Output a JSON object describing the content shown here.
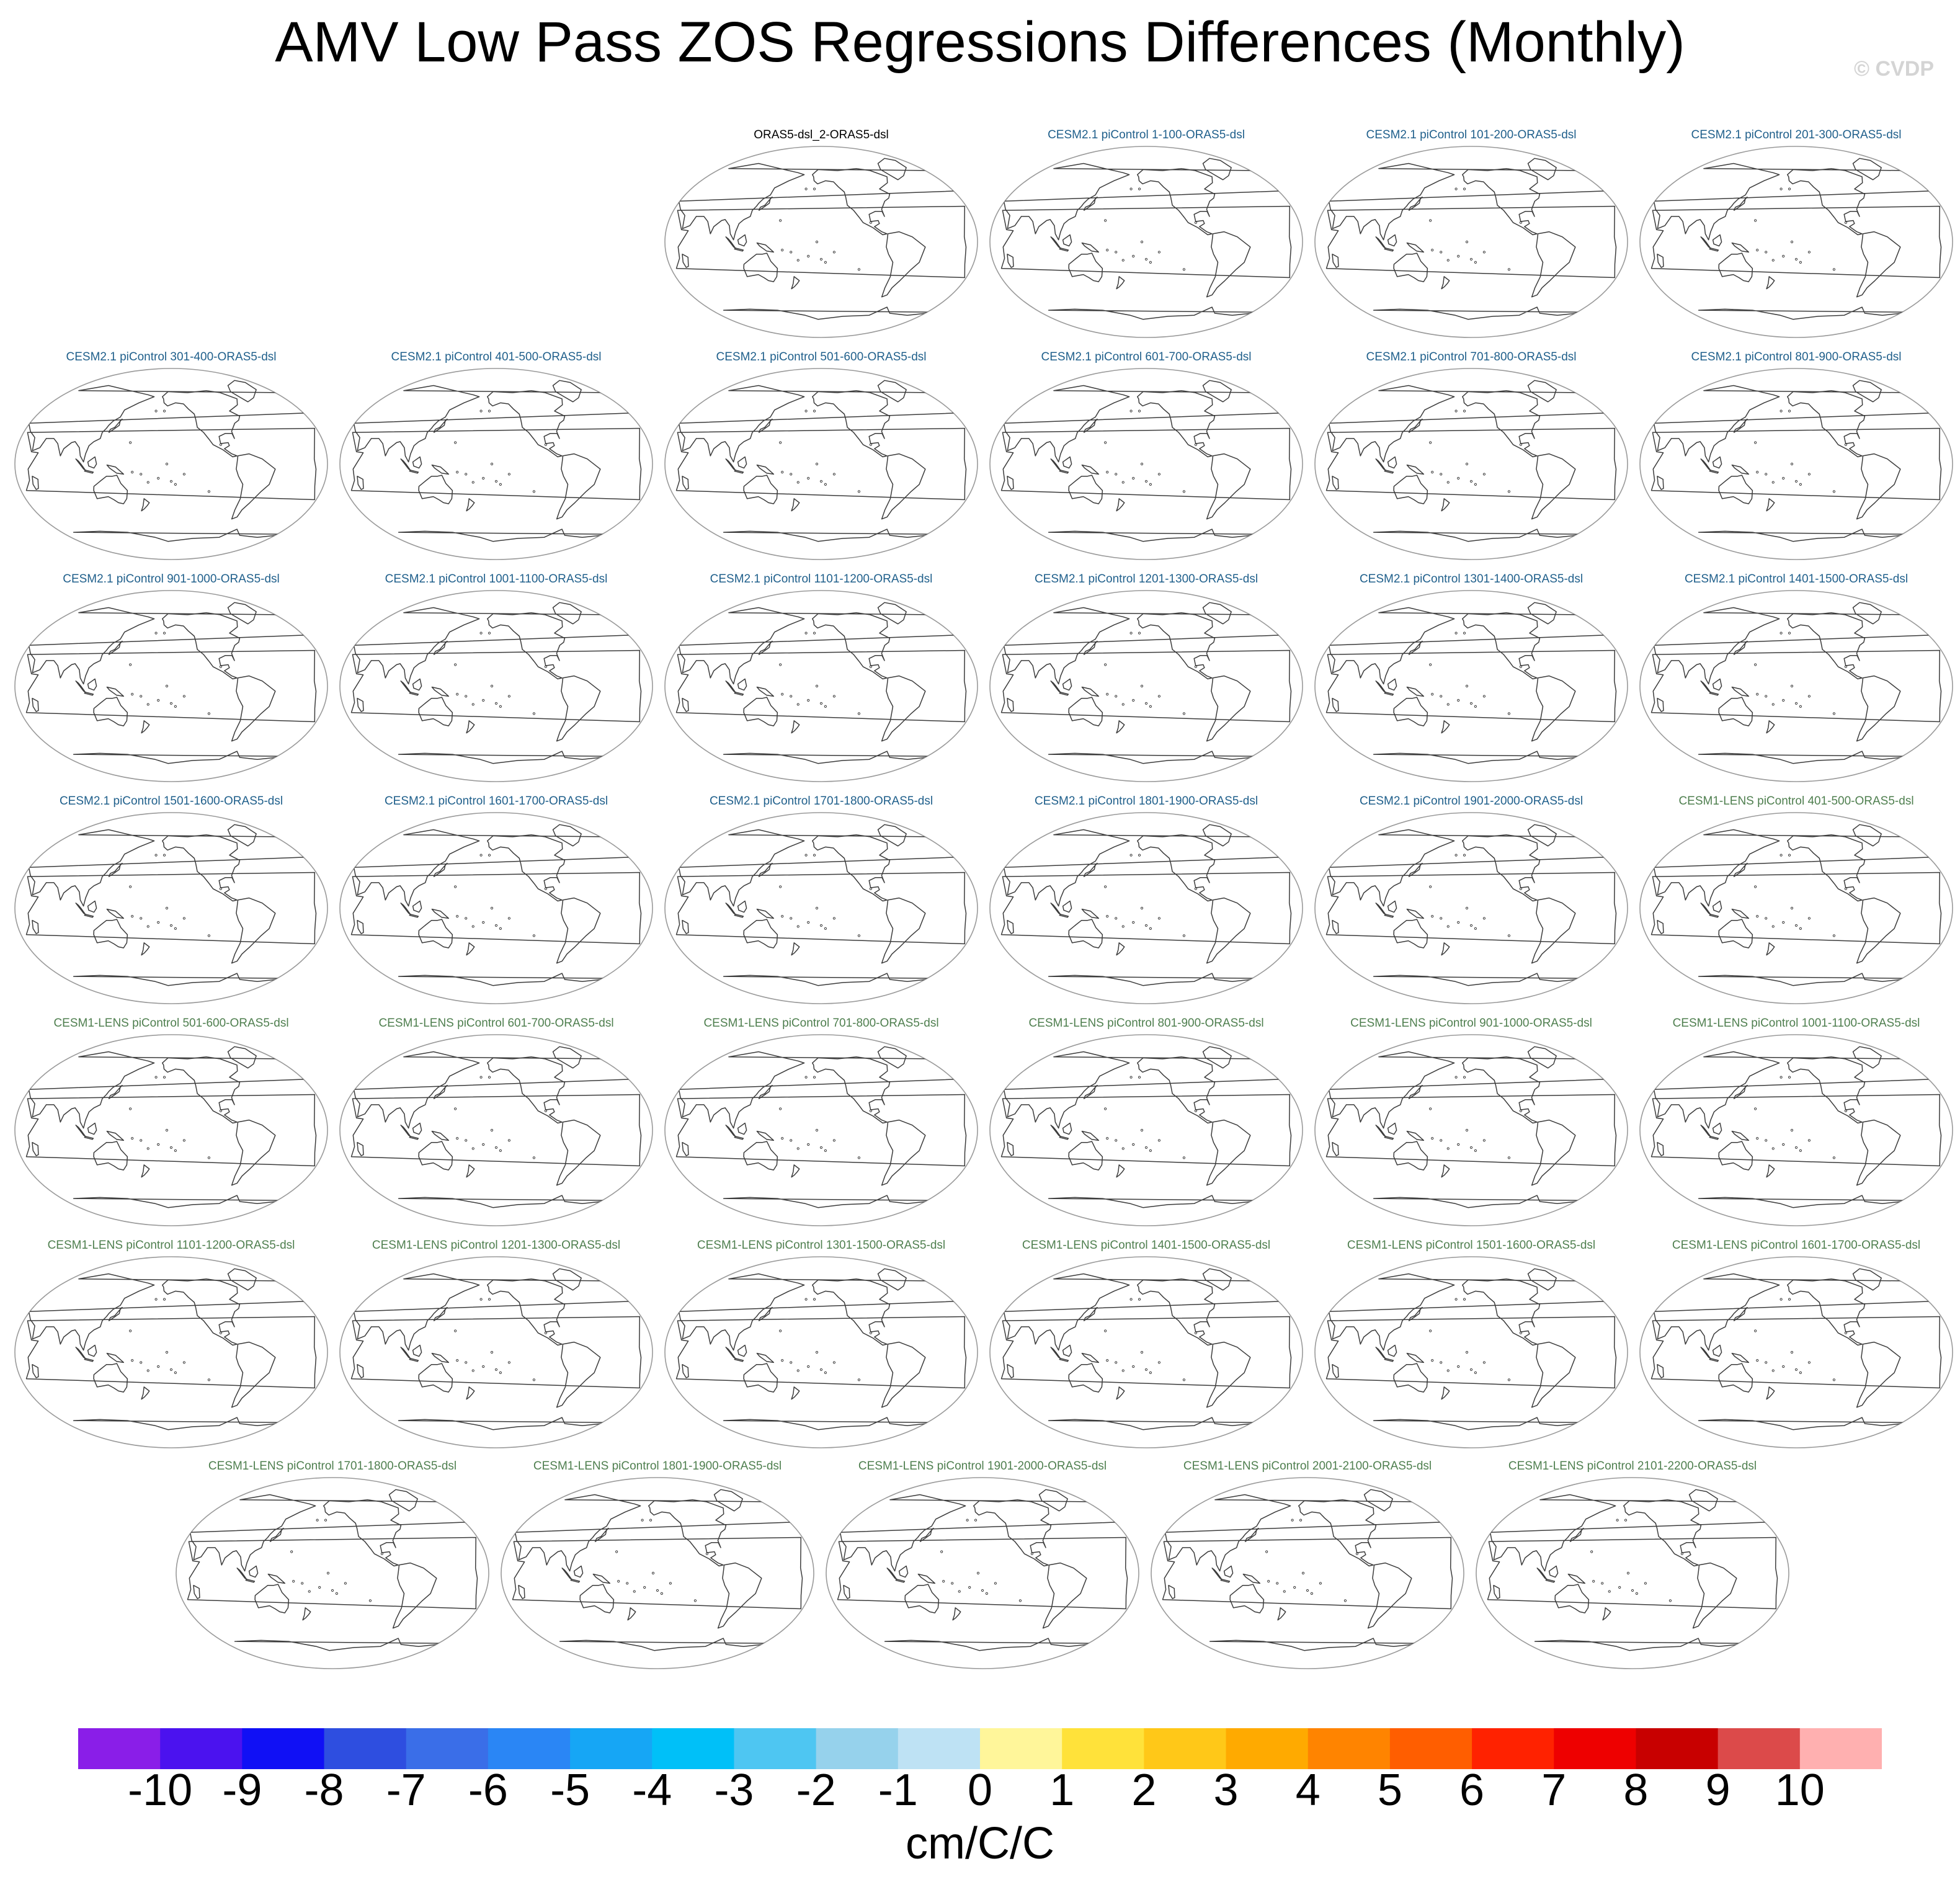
{
  "title": "AMV Low Pass ZOS Regressions Differences (Monthly)",
  "watermark": "© CVDP",
  "chart_data": {
    "type": "map-panel-grid",
    "title": "AMV Low Pass ZOS Regressions Differences (Monthly)",
    "projection": "Robinson, Pacific-centered",
    "filled_values": "none visible (all panels show coastlines only)",
    "panels": [
      {
        "label": "ORAS5-dsl_2-ORAS5-dsl",
        "group": "reference"
      },
      {
        "label": "CESM2.1 piControl 1-100-ORAS5-dsl",
        "group": "cesm2"
      },
      {
        "label": "CESM2.1 piControl 101-200-ORAS5-dsl",
        "group": "cesm2"
      },
      {
        "label": "CESM2.1 piControl 201-300-ORAS5-dsl",
        "group": "cesm2"
      },
      {
        "label": "CESM2.1 piControl 301-400-ORAS5-dsl",
        "group": "cesm2"
      },
      {
        "label": "CESM2.1 piControl 401-500-ORAS5-dsl",
        "group": "cesm2"
      },
      {
        "label": "CESM2.1 piControl 501-600-ORAS5-dsl",
        "group": "cesm2"
      },
      {
        "label": "CESM2.1 piControl 601-700-ORAS5-dsl",
        "group": "cesm2"
      },
      {
        "label": "CESM2.1 piControl 701-800-ORAS5-dsl",
        "group": "cesm2"
      },
      {
        "label": "CESM2.1 piControl 801-900-ORAS5-dsl",
        "group": "cesm2"
      },
      {
        "label": "CESM2.1 piControl 901-1000-ORAS5-dsl",
        "group": "cesm2"
      },
      {
        "label": "CESM2.1 piControl 1001-1100-ORAS5-dsl",
        "group": "cesm2"
      },
      {
        "label": "CESM2.1 piControl 1101-1200-ORAS5-dsl",
        "group": "cesm2"
      },
      {
        "label": "CESM2.1 piControl 1201-1300-ORAS5-dsl",
        "group": "cesm2"
      },
      {
        "label": "CESM2.1 piControl 1301-1400-ORAS5-dsl",
        "group": "cesm2"
      },
      {
        "label": "CESM2.1 piControl 1401-1500-ORAS5-dsl",
        "group": "cesm2"
      },
      {
        "label": "CESM2.1 piControl 1501-1600-ORAS5-dsl",
        "group": "cesm2"
      },
      {
        "label": "CESM2.1 piControl 1601-1700-ORAS5-dsl",
        "group": "cesm2"
      },
      {
        "label": "CESM2.1 piControl 1701-1800-ORAS5-dsl",
        "group": "cesm2"
      },
      {
        "label": "CESM2.1 piControl 1801-1900-ORAS5-dsl",
        "group": "cesm2"
      },
      {
        "label": "CESM2.1 piControl 1901-2000-ORAS5-dsl",
        "group": "cesm2"
      },
      {
        "label": "CESM1-LENS piControl 401-500-ORAS5-dsl",
        "group": "cesm1"
      },
      {
        "label": "CESM1-LENS piControl 501-600-ORAS5-dsl",
        "group": "cesm1"
      },
      {
        "label": "CESM1-LENS piControl 601-700-ORAS5-dsl",
        "group": "cesm1"
      },
      {
        "label": "CESM1-LENS piControl 701-800-ORAS5-dsl",
        "group": "cesm1"
      },
      {
        "label": "CESM1-LENS piControl 801-900-ORAS5-dsl",
        "group": "cesm1"
      },
      {
        "label": "CESM1-LENS piControl 901-1000-ORAS5-dsl",
        "group": "cesm1"
      },
      {
        "label": "CESM1-LENS piControl 1001-1100-ORAS5-dsl",
        "group": "cesm1"
      },
      {
        "label": "CESM1-LENS piControl 1101-1200-ORAS5-dsl",
        "group": "cesm1"
      },
      {
        "label": "CESM1-LENS piControl 1201-1300-ORAS5-dsl",
        "group": "cesm1"
      },
      {
        "label": "CESM1-LENS piControl 1301-1500-ORAS5-dsl",
        "group": "cesm1"
      },
      {
        "label": "CESM1-LENS piControl 1401-1500-ORAS5-dsl",
        "group": "cesm1"
      },
      {
        "label": "CESM1-LENS piControl 1501-1600-ORAS5-dsl",
        "group": "cesm1"
      },
      {
        "label": "CESM1-LENS piControl 1601-1700-ORAS5-dsl",
        "group": "cesm1"
      },
      {
        "label": "CESM1-LENS piControl 1701-1800-ORAS5-dsl",
        "group": "cesm1"
      },
      {
        "label": "CESM1-LENS piControl 1801-1900-ORAS5-dsl",
        "group": "cesm1"
      },
      {
        "label": "CESM1-LENS piControl 1901-2000-ORAS5-dsl",
        "group": "cesm1"
      },
      {
        "label": "CESM1-LENS piControl 2001-2100-ORAS5-dsl",
        "group": "cesm1"
      },
      {
        "label": "CESM1-LENS piControl 2101-2200-ORAS5-dsl",
        "group": "cesm1"
      }
    ],
    "group_colors": {
      "reference": "#000000",
      "cesm2": "#1f5f8b",
      "cesm1": "#4f7f4f"
    },
    "colorbar": {
      "units": "cm/C/C",
      "tick_labels": [
        "-10",
        "-9",
        "-8",
        "-7",
        "-6",
        "-5",
        "-4",
        "-3",
        "-2",
        "-1",
        "0",
        "1",
        "2",
        "3",
        "4",
        "5",
        "6",
        "7",
        "8",
        "9",
        "10"
      ],
      "colors": [
        "#8a1ee8",
        "#4b12ef",
        "#1010f5",
        "#2e4ee0",
        "#3a6ee8",
        "#2a86f5",
        "#16a6f5",
        "#00c0f8",
        "#4ec6f2",
        "#96d2ec",
        "#bee2f4",
        "#fff69a",
        "#ffe23a",
        "#ffc818",
        "#ffaa00",
        "#ff8400",
        "#ff5e00",
        "#ff2200",
        "#ee0000",
        "#c80000",
        "#dc4a4a",
        "#ffb0b0"
      ]
    }
  }
}
